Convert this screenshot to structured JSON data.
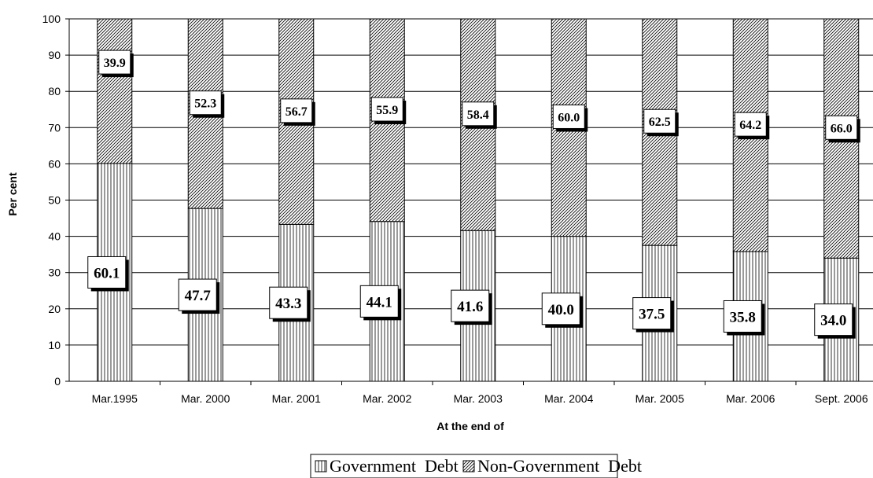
{
  "chart_data": {
    "type": "bar",
    "stacked": true,
    "categories": [
      "Mar.1995",
      "Mar. 2000",
      "Mar. 2001",
      "Mar. 2002",
      "Mar. 2003",
      "Mar. 2004",
      "Mar. 2005",
      "Mar. 2006",
      "Sept. 2006"
    ],
    "series": [
      {
        "name": "Government  Debt",
        "values": [
          60.1,
          47.7,
          43.3,
          44.1,
          41.6,
          40.0,
          37.5,
          35.8,
          34.0
        ],
        "labels": [
          "60.1",
          "47.7",
          "43.3",
          "44.1",
          "41.6",
          "40.0",
          "37.5",
          "35.8",
          "34.0"
        ],
        "pattern": "vertical-lines"
      },
      {
        "name": "Non-Government  Debt",
        "values": [
          39.9,
          52.3,
          56.7,
          55.9,
          58.4,
          60.0,
          62.5,
          64.2,
          66.0
        ],
        "labels": [
          "39.9",
          "52.3",
          "56.7",
          "55.9",
          "58.4",
          "60.0",
          "62.5",
          "64.2",
          "66.0"
        ],
        "pattern": "diagonal-hatch"
      }
    ],
    "title": "",
    "xlabel": "At the end of",
    "ylabel": "Per cent",
    "ylim": [
      0,
      100
    ],
    "yticks": [
      "0",
      "10",
      "20",
      "30",
      "40",
      "50",
      "60",
      "70",
      "80",
      "90",
      "100"
    ],
    "grid": true,
    "legend_position": "bottom"
  }
}
